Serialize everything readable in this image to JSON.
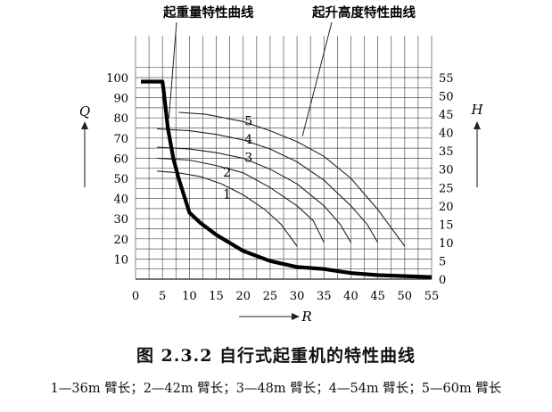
{
  "chart_data": {
    "type": "line",
    "caption": "图 2.3.2   自行式起重机的特性曲线",
    "legend_note": "1—36m 臂长；2—42m 臂长；3—48m 臂长；4—54m 臂长；5—60m 臂长",
    "xlabel": "R",
    "ylabel_left": "Q",
    "ylabel_right": "H",
    "xlim": [
      0,
      55
    ],
    "ylim_left": [
      0,
      100
    ],
    "ylim_right": [
      0,
      55
    ],
    "x_ticks": [
      "0",
      "5",
      "10",
      "15",
      "20",
      "25",
      "30",
      "35",
      "40",
      "45",
      "50",
      "55"
    ],
    "y_left_ticks": [
      "10",
      "20",
      "30",
      "40",
      "50",
      "60",
      "70",
      "80",
      "90",
      "100"
    ],
    "y_right_ticks": [
      "0",
      "5",
      "10",
      "15",
      "20",
      "25",
      "30",
      "35",
      "40",
      "45",
      "50",
      "55"
    ],
    "grid": true,
    "annotations": {
      "lifting_capacity": "起重量特性曲线",
      "lifting_height": "起升高度特性曲线"
    },
    "lifting_capacity_curve": {
      "x": [
        1,
        5,
        5.2,
        6,
        7,
        8,
        10,
        12,
        15,
        20,
        25,
        30,
        35,
        40,
        45,
        50,
        55
      ],
      "y": [
        98,
        98,
        94,
        75,
        60,
        50,
        33,
        28,
        22,
        14,
        9,
        6,
        5,
        3,
        2,
        1.5,
        1
      ]
    },
    "series": [
      {
        "name": "1",
        "x": [
          4,
          8,
          12,
          16,
          20,
          24,
          27,
          30
        ],
        "y": [
          29.5,
          29,
          28,
          26,
          23,
          19,
          15,
          9
        ]
      },
      {
        "name": "2",
        "x": [
          4,
          10,
          15,
          20,
          25,
          30,
          33,
          35
        ],
        "y": [
          33,
          32.5,
          31,
          29,
          25,
          20,
          16,
          10
        ]
      },
      {
        "name": "3",
        "x": [
          4,
          10,
          15,
          20,
          25,
          30,
          35,
          38,
          40
        ],
        "y": [
          36,
          35.5,
          34.5,
          33,
          30,
          26,
          20,
          15,
          10
        ]
      },
      {
        "name": "4",
        "x": [
          4,
          10,
          15,
          20,
          25,
          30,
          35,
          40,
          43,
          45
        ],
        "y": [
          41,
          40.5,
          39.5,
          38,
          35.5,
          32,
          27,
          20,
          15,
          10
        ]
      },
      {
        "name": "5",
        "x": [
          8,
          13,
          20,
          25,
          30,
          35,
          40,
          45,
          48,
          50
        ],
        "y": [
          45.5,
          45,
          43,
          40.5,
          37.5,
          33.5,
          27.5,
          19,
          13,
          9
        ]
      }
    ],
    "curve_labels": [
      {
        "name": "1",
        "x": 17,
        "y": 22
      },
      {
        "name": "2",
        "x": 17,
        "y": 28
      },
      {
        "name": "3",
        "x": 21,
        "y": 32
      },
      {
        "name": "4",
        "x": 21,
        "y": 37
      },
      {
        "name": "5",
        "x": 21,
        "y": 42
      }
    ]
  }
}
